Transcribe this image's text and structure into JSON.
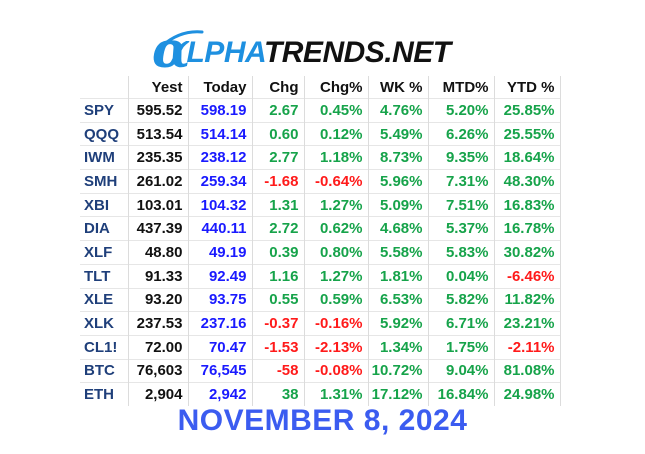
{
  "logo": {
    "alpha_glyph": "α",
    "alpha_part": "LPHA",
    "trends_part": "TRENDS.NET",
    "colors": {
      "blue": "#1e90e0",
      "black": "#111111"
    }
  },
  "table": {
    "headers": [
      "",
      "Yest",
      "Today",
      "Chg",
      "Chg%",
      "WK %",
      "MTD%",
      "YTD %"
    ],
    "rows": [
      {
        "sym": "SPY",
        "yest": "595.52",
        "today": "598.19",
        "chg": "2.67",
        "chgp": "0.45%",
        "wk": "4.76%",
        "mtd": "5.20%",
        "ytd": "25.85%"
      },
      {
        "sym": "QQQ",
        "yest": "513.54",
        "today": "514.14",
        "chg": "0.60",
        "chgp": "0.12%",
        "wk": "5.49%",
        "mtd": "6.26%",
        "ytd": "25.55%"
      },
      {
        "sym": "IWM",
        "yest": "235.35",
        "today": "238.12",
        "chg": "2.77",
        "chgp": "1.18%",
        "wk": "8.73%",
        "mtd": "9.35%",
        "ytd": "18.64%"
      },
      {
        "sym": "SMH",
        "yest": "261.02",
        "today": "259.34",
        "chg": "-1.68",
        "chgp": "-0.64%",
        "wk": "5.96%",
        "mtd": "7.31%",
        "ytd": "48.30%"
      },
      {
        "sym": "XBI",
        "yest": "103.01",
        "today": "104.32",
        "chg": "1.31",
        "chgp": "1.27%",
        "wk": "5.09%",
        "mtd": "7.51%",
        "ytd": "16.83%"
      },
      {
        "sym": "DIA",
        "yest": "437.39",
        "today": "440.11",
        "chg": "2.72",
        "chgp": "0.62%",
        "wk": "4.68%",
        "mtd": "5.37%",
        "ytd": "16.78%"
      },
      {
        "sym": "XLF",
        "yest": "48.80",
        "today": "49.19",
        "chg": "0.39",
        "chgp": "0.80%",
        "wk": "5.58%",
        "mtd": "5.83%",
        "ytd": "30.82%"
      },
      {
        "sym": "TLT",
        "yest": "91.33",
        "today": "92.49",
        "chg": "1.16",
        "chgp": "1.27%",
        "wk": "1.81%",
        "mtd": "0.04%",
        "ytd": "-6.46%"
      },
      {
        "sym": "XLE",
        "yest": "93.20",
        "today": "93.75",
        "chg": "0.55",
        "chgp": "0.59%",
        "wk": "6.53%",
        "mtd": "5.82%",
        "ytd": "11.82%"
      },
      {
        "sym": "XLK",
        "yest": "237.53",
        "today": "237.16",
        "chg": "-0.37",
        "chgp": "-0.16%",
        "wk": "5.92%",
        "mtd": "6.71%",
        "ytd": "23.21%"
      },
      {
        "sym": "CL1!",
        "yest": "72.00",
        "today": "70.47",
        "chg": "-1.53",
        "chgp": "-2.13%",
        "wk": "1.34%",
        "mtd": "1.75%",
        "ytd": "-2.11%"
      },
      {
        "sym": "BTC",
        "yest": "76,603",
        "today": "76,545",
        "chg": "-58",
        "chgp": "-0.08%",
        "wk": "10.72%",
        "mtd": "9.04%",
        "ytd": "81.08%"
      },
      {
        "sym": "ETH",
        "yest": "2,904",
        "today": "2,942",
        "chg": "38",
        "chgp": "1.31%",
        "wk": "17.12%",
        "mtd": "16.84%",
        "ytd": "24.98%"
      }
    ],
    "colors": {
      "symbol": "#1f3f7a",
      "yest": "#111111",
      "today": "#1a1aff",
      "positive": "#16a34a",
      "negative": "#ff1a1a"
    }
  },
  "date": "NOVEMBER 8, 2024",
  "date_color": "#3b5cf0"
}
